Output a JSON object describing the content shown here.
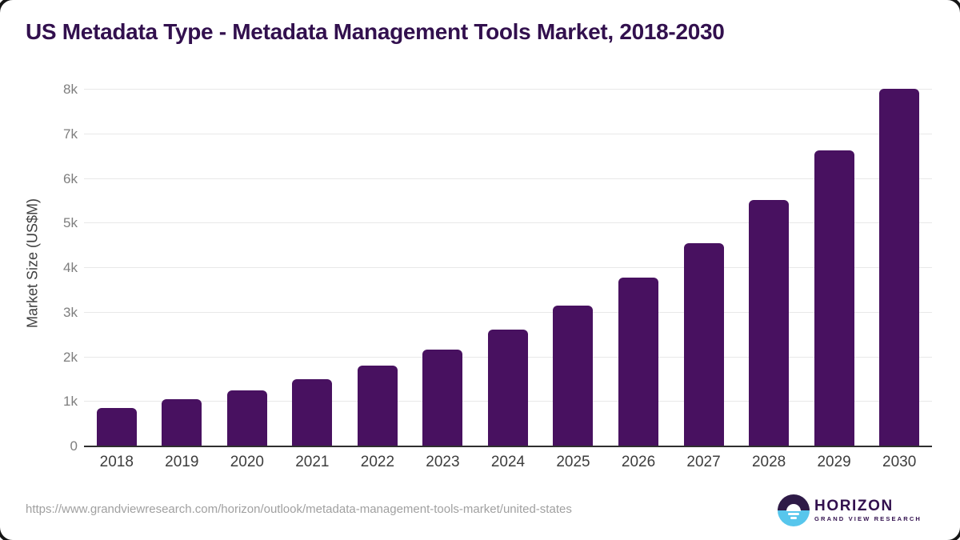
{
  "chart_data": {
    "type": "bar",
    "title": "US Metadata Type - Metadata Management Tools Market, 2018-2030",
    "xlabel": "",
    "ylabel": "Market Size (US$M)",
    "categories": [
      "2018",
      "2019",
      "2020",
      "2021",
      "2022",
      "2023",
      "2024",
      "2025",
      "2026",
      "2027",
      "2028",
      "2029",
      "2030"
    ],
    "values": [
      870,
      1055,
      1250,
      1505,
      1805,
      2170,
      2620,
      3160,
      3790,
      4555,
      5520,
      6645,
      8030
    ],
    "ylim": [
      0,
      8220
    ],
    "yticks": [
      {
        "value": 0,
        "label": "0"
      },
      {
        "value": 1000,
        "label": "1k"
      },
      {
        "value": 2000,
        "label": "2k"
      },
      {
        "value": 3000,
        "label": "3k"
      },
      {
        "value": 4000,
        "label": "4k"
      },
      {
        "value": 5000,
        "label": "5k"
      },
      {
        "value": 6000,
        "label": "6k"
      },
      {
        "value": 7000,
        "label": "7k"
      },
      {
        "value": 8000,
        "label": "8k"
      }
    ],
    "grid": true,
    "legend": false,
    "bar_color": "#481160"
  },
  "colors": {
    "title_text": "#32104e",
    "bar": "#481160",
    "gridline": "#e8e8e8",
    "axis_line": "#2f2f2f",
    "y_tick_text": "#7e7e7e",
    "x_tick_text": "#3d3d3d",
    "url_text": "#a0a0a0",
    "logo_purple": "#2e1a47",
    "logo_blue": "#57c6ec"
  },
  "footer": {
    "source_url": "https://www.grandviewresearch.com/horizon/outlook/metadata-management-tools-market/united-states",
    "logo": {
      "name": "HORIZON",
      "subtitle": "GRAND VIEW RESEARCH"
    }
  }
}
